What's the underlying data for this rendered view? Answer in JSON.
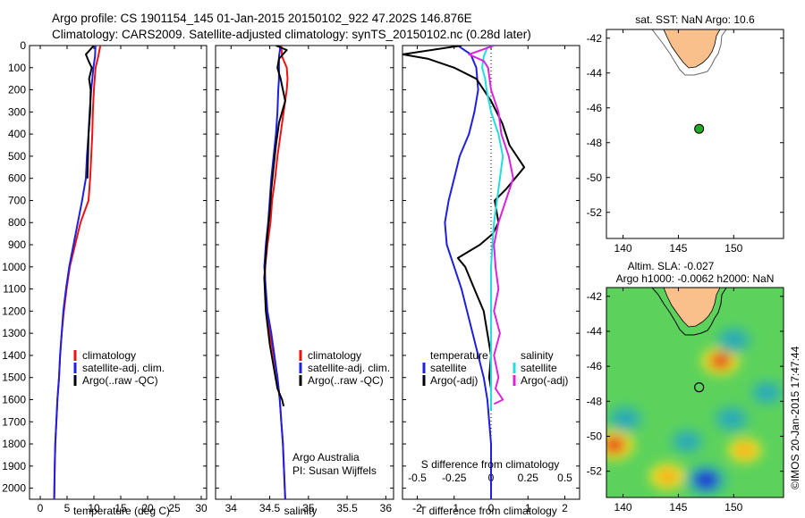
{
  "header": {
    "line1": "Argo profile: CS 1901154_145 01-Jan-2015 20150102_922 47.202S 146.876E",
    "line2": "Climatology: CARS2009. Satellite-adjusted climatology: synTS_20150102.nc (0.28d later)"
  },
  "colors": {
    "climatology": "#ee1111",
    "satellite": "#1f1fe0",
    "argo": "#000000",
    "sat_salt": "#22dddd",
    "argo_salt": "#dd22dd",
    "land": "#f9c08c"
  },
  "watermark": "©IMOS 20-Jan-2015 17:47:44",
  "chart_data": [
    {
      "type": "line",
      "id": "temperature",
      "xlabel": "temperature (deg C)",
      "ylabel": "",
      "xlim": [
        -2,
        31
      ],
      "ylim": [
        2050,
        0
      ],
      "xticks": [
        0,
        5,
        10,
        15,
        20,
        25,
        30
      ],
      "yticks": [
        0,
        100,
        200,
        300,
        400,
        500,
        600,
        700,
        800,
        900,
        1000,
        1100,
        1200,
        1300,
        1400,
        1500,
        1600,
        1700,
        1800,
        1900,
        2000
      ],
      "legend": {
        "placement": "bottom-center",
        "entries": [
          "climatology",
          "satellite-adj. clim.",
          "Argo(..raw -QC)"
        ]
      },
      "series": [
        {
          "name": "climatology",
          "color": "#ee1111",
          "x": [
            11.2,
            10.8,
            10.3,
            10.0,
            9.8,
            9.7,
            9.5,
            9.3,
            9.0,
            7.5,
            6.5,
            5.5,
            4.9,
            4.4,
            4.0,
            3.7,
            3.5,
            3.2,
            3.0,
            2.8,
            2.7,
            2.6
          ],
          "y": [
            0,
            50,
            100,
            200,
            300,
            400,
            500,
            600,
            700,
            800,
            900,
            1000,
            1100,
            1200,
            1300,
            1400,
            1500,
            1600,
            1700,
            1800,
            1900,
            2050
          ]
        },
        {
          "name": "satellite-adj. clim.",
          "color": "#1f1fe0",
          "x": [
            10.3,
            10.2,
            9.9,
            9.5,
            9.2,
            9.0,
            8.7,
            8.5,
            7.8,
            7.0,
            6.2,
            5.4,
            4.8,
            4.3,
            4.0,
            3.7,
            3.5,
            3.2,
            3.0,
            2.8,
            2.7,
            2.6
          ],
          "y": [
            0,
            50,
            100,
            200,
            300,
            400,
            500,
            600,
            700,
            800,
            900,
            1000,
            1100,
            1200,
            1300,
            1400,
            1500,
            1600,
            1700,
            1800,
            1900,
            2050
          ]
        },
        {
          "name": "Argo(..raw -QC)",
          "color": "#000000",
          "x": [
            10.0,
            8.5,
            9.0,
            9.6,
            9.1,
            9.4,
            9.3,
            9.0,
            8.9,
            8.8,
            8.8
          ],
          "y": [
            0,
            40,
            70,
            100,
            150,
            200,
            300,
            400,
            500,
            580,
            600
          ]
        }
      ]
    },
    {
      "type": "line",
      "id": "salinity",
      "xlabel": "salinity",
      "xlim": [
        33.8,
        36.1
      ],
      "ylim": [
        2050,
        0
      ],
      "xticks": [
        34,
        34.5,
        35,
        35.5,
        36
      ],
      "xtick_labels": [
        "34",
        "34.5",
        "35",
        "35.5",
        "36"
      ],
      "yticks": [
        0,
        100,
        200,
        300,
        400,
        500,
        600,
        700,
        800,
        900,
        1000,
        1100,
        1200,
        1300,
        1400,
        1500,
        1600,
        1700,
        1800,
        1900,
        2000
      ],
      "legend": {
        "placement": "bottom-right",
        "entries": [
          "climatology",
          "satellite-adj. clim.",
          "Argo(..raw -QC)"
        ]
      },
      "annotation": {
        "line1": "Argo Australia",
        "line2": "PI: Susan Wijffels"
      },
      "series": [
        {
          "name": "climatology",
          "color": "#ee1111",
          "x": [
            34.65,
            34.66,
            34.72,
            34.73,
            34.72,
            34.68,
            34.64,
            34.6,
            34.57,
            34.53,
            34.51,
            34.47,
            34.44,
            34.44,
            34.46,
            34.5,
            34.55,
            34.6,
            34.63,
            34.65,
            34.67,
            34.7
          ],
          "y": [
            0,
            50,
            100,
            150,
            200,
            300,
            400,
            500,
            600,
            700,
            800,
            900,
            1000,
            1100,
            1200,
            1300,
            1400,
            1500,
            1600,
            1700,
            1800,
            2050
          ]
        },
        {
          "name": "satellite-adj. clim.",
          "color": "#1f1fe0",
          "x": [
            34.64,
            34.62,
            34.62,
            34.62,
            34.61,
            34.6,
            34.58,
            34.55,
            34.52,
            34.5,
            34.48,
            34.45,
            34.43,
            34.45,
            34.47,
            34.52,
            34.56,
            34.6,
            34.63,
            34.65,
            34.67,
            34.7
          ],
          "y": [
            0,
            50,
            100,
            150,
            200,
            300,
            400,
            500,
            600,
            700,
            800,
            900,
            1000,
            1100,
            1200,
            1300,
            1400,
            1500,
            1600,
            1700,
            1800,
            2050
          ]
        },
        {
          "name": "Argo(..raw -QC)",
          "color": "#000000",
          "x": [
            34.58,
            34.72,
            34.62,
            34.6,
            34.64,
            34.7,
            34.62,
            34.58,
            34.55,
            34.52,
            34.5,
            34.47,
            34.45,
            34.43,
            34.45,
            34.5,
            34.55,
            34.6,
            34.66,
            34.68
          ],
          "y": [
            0,
            20,
            60,
            100,
            150,
            250,
            350,
            450,
            550,
            650,
            750,
            850,
            950,
            1050,
            1200,
            1350,
            1450,
            1550,
            1600,
            1630
          ]
        }
      ]
    },
    {
      "type": "line",
      "id": "differences",
      "xlabel": "T difference from climatology",
      "xlim": [
        -2.4,
        2.4
      ],
      "ylim": [
        2050,
        0
      ],
      "xticks": [
        -2,
        -1,
        0,
        1,
        2
      ],
      "secondary_axis": {
        "label": "S difference from climatology",
        "ticks": [
          -0.5,
          -0.25,
          0,
          0.25,
          0.5
        ],
        "tick_labels": [
          "-0.5",
          "-0.25",
          "0",
          "0.25",
          "0.5"
        ]
      },
      "legend": {
        "placement": "bottom",
        "temperature_title": "temperature",
        "salinity_title": "salinity",
        "temperature_entries": [
          "satellite",
          "Argo(-adj)"
        ],
        "salinity_entries": [
          "satellite",
          "Argo(-adj)"
        ]
      },
      "series": [
        {
          "name": "temperature satellite",
          "color": "#1f1fe0",
          "x": [
            -0.9,
            -0.55,
            -0.4,
            -0.35,
            -0.45,
            -0.6,
            -0.85,
            -1.0,
            -1.15,
            -1.25,
            -1.2,
            -1.0,
            -0.8,
            -0.65,
            -0.5,
            -0.35,
            -0.2,
            -0.1,
            0.0,
            0.0
          ],
          "y": [
            0,
            40,
            100,
            200,
            300,
            400,
            500,
            600,
            700,
            800,
            900,
            1000,
            1100,
            1200,
            1300,
            1400,
            1500,
            1600,
            1800,
            2050
          ]
        },
        {
          "name": "temperature Argo(-adj)",
          "color": "#000000",
          "x": [
            -0.8,
            -2.4,
            -1.7,
            -1.0,
            -0.4,
            -0.2,
            0.0,
            0.3,
            0.5,
            0.9,
            0.4,
            0.1,
            0.15,
            0.2,
            0.05,
            -0.3,
            -0.9,
            -0.7,
            -0.45,
            -0.2,
            -0.1,
            0.0,
            -0.05,
            0.0,
            0.0
          ],
          "y": [
            0,
            40,
            60,
            100,
            150,
            200,
            250,
            350,
            450,
            550,
            650,
            700,
            750,
            800,
            850,
            900,
            960,
            1000,
            1100,
            1200,
            1300,
            1400,
            1500,
            1550,
            1600
          ]
        },
        {
          "name": "salinity satellite",
          "color": "#22dddd",
          "x": [
            -0.02,
            -0.05,
            -0.06,
            -0.04,
            -0.03,
            0.0,
            0.05,
            0.08,
            0.06,
            0.04,
            0.02,
            0.01,
            0.0,
            0.0,
            0.0,
            0.0,
            0.0,
            0.0,
            0.0,
            0.0
          ],
          "y": [
            0,
            50,
            100,
            150,
            200,
            300,
            400,
            500,
            600,
            700,
            800,
            900,
            1000,
            1100,
            1200,
            1300,
            1400,
            1500,
            1600,
            1650
          ]
        },
        {
          "name": "salinity Argo(-adj)",
          "color": "#dd22dd",
          "x": [
            0.02,
            -0.15,
            -0.05,
            -0.02,
            0.0,
            0.05,
            0.07,
            0.12,
            0.15,
            0.1,
            0.05,
            0.02,
            0.03,
            0.05,
            0.02,
            0.06,
            0.02,
            0.05,
            0.03,
            0.08,
            0.02
          ],
          "y": [
            0,
            40,
            70,
            100,
            200,
            300,
            400,
            500,
            600,
            700,
            800,
            900,
            1000,
            1100,
            1200,
            1300,
            1400,
            1500,
            1550,
            1600,
            1620
          ]
        }
      ]
    },
    {
      "type": "scatter",
      "id": "sst-map",
      "title": "sat. SST: NaN Argo: 10.6",
      "xlim": [
        138.5,
        154.5
      ],
      "ylim": [
        -53.5,
        -41.5
      ],
      "xticks": [
        140,
        145,
        150
      ],
      "yticks": [
        -42,
        -44,
        -46,
        -48,
        -50,
        -52
      ],
      "point": {
        "lon": 146.876,
        "lat": -47.202
      }
    },
    {
      "type": "heatmap",
      "id": "sla-map",
      "title": "Altim. SLA: -0.027",
      "subtitle": "Argo h1000: -0.0062 h2000: NaN",
      "xlim": [
        138.5,
        154.5
      ],
      "ylim": [
        -53.5,
        -41.5
      ],
      "xticks": [
        140,
        145,
        150
      ],
      "yticks": [
        -42,
        -44,
        -46,
        -48,
        -50,
        -52
      ],
      "point": {
        "lon": 146.876,
        "lat": -47.202
      },
      "features": [
        {
          "kind": "high",
          "lon": 148.8,
          "lat": -45.7,
          "value": 0.3
        },
        {
          "kind": "high",
          "lon": 139.2,
          "lat": -50.5,
          "value": 0.35
        },
        {
          "kind": "high",
          "lon": 144.0,
          "lat": -52.3,
          "value": 0.25
        },
        {
          "kind": "high",
          "lon": 151.0,
          "lat": -50.8,
          "value": 0.2
        },
        {
          "kind": "low",
          "lon": 150.0,
          "lat": -44.5,
          "value": -0.25
        },
        {
          "kind": "low",
          "lon": 149.8,
          "lat": -49.0,
          "value": -0.25
        },
        {
          "kind": "low",
          "lon": 140.2,
          "lat": -49.0,
          "value": -0.25
        },
        {
          "kind": "low",
          "lon": 147.5,
          "lat": -52.5,
          "value": -0.45
        },
        {
          "kind": "low",
          "lon": 153.0,
          "lat": -47.5,
          "value": -0.2
        },
        {
          "kind": "low",
          "lon": 145.8,
          "lat": -50.3,
          "value": -0.2
        }
      ]
    }
  ]
}
